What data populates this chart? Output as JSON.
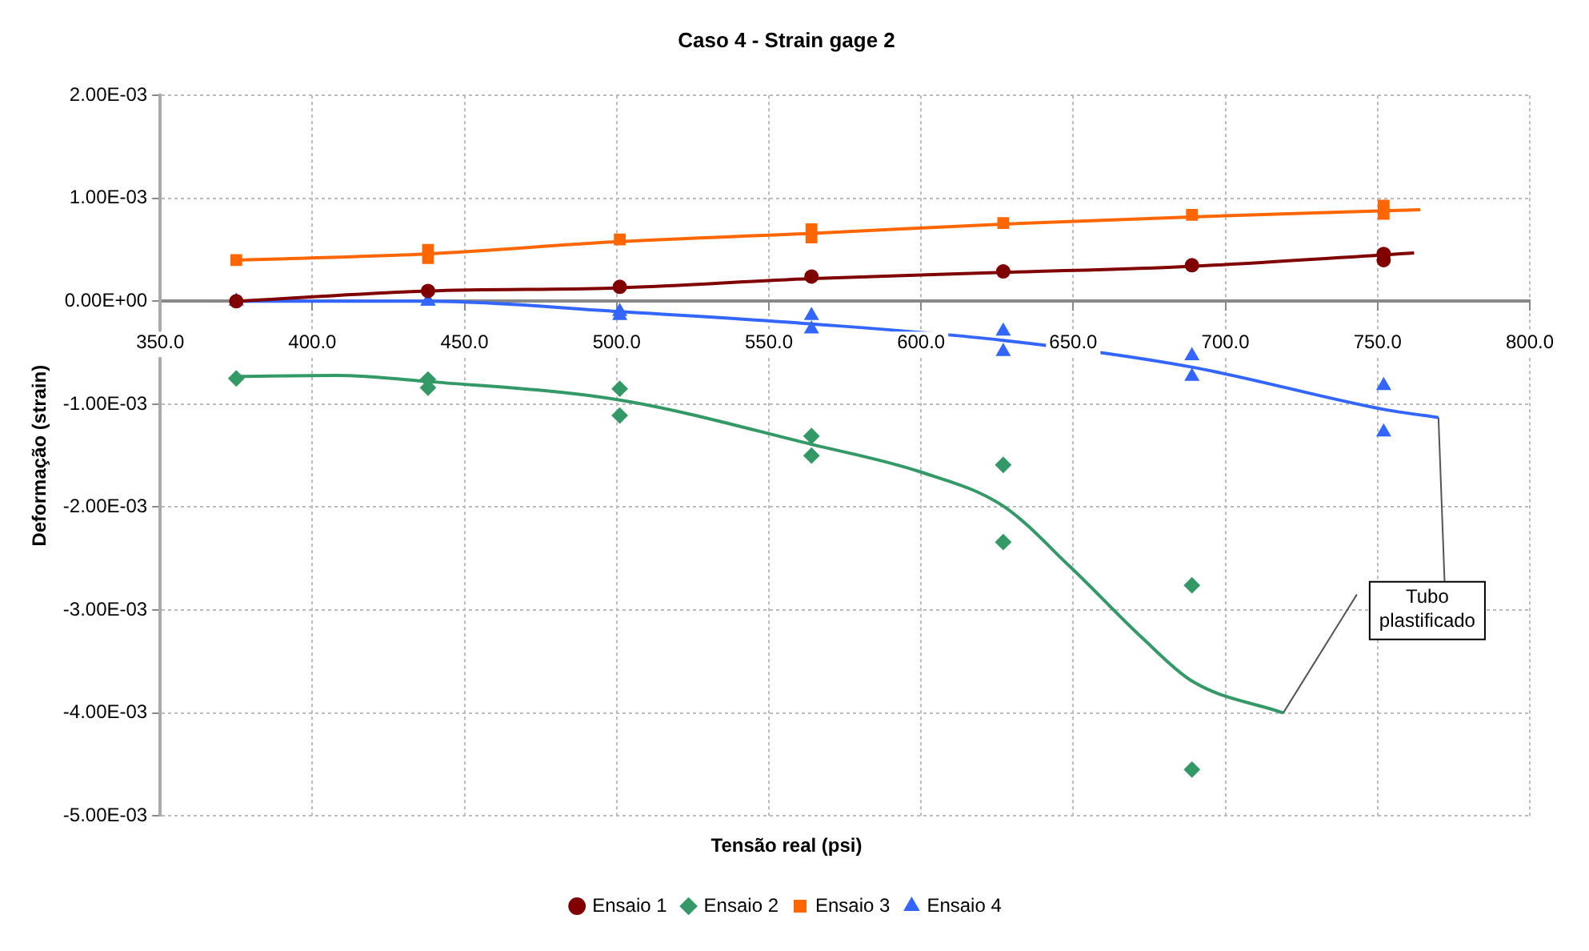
{
  "chart_data": {
    "type": "scatter",
    "title": "Caso 4 - Strain gage 2",
    "xlabel": "Tensão real (psi)",
    "ylabel": "Deformação (strain)",
    "xlim": [
      350,
      800
    ],
    "xticks": [
      {
        "value": 350,
        "label": "350.0"
      },
      {
        "value": 400,
        "label": "400.0"
      },
      {
        "value": 450,
        "label": "450.0"
      },
      {
        "value": 500,
        "label": "500.0"
      },
      {
        "value": 550,
        "label": "550.0"
      },
      {
        "value": 600,
        "label": "600.0"
      },
      {
        "value": 650,
        "label": "650.0"
      },
      {
        "value": 700,
        "label": "700.0"
      },
      {
        "value": 750,
        "label": "750.0"
      },
      {
        "value": 800,
        "label": "800.0"
      }
    ],
    "ylim": [
      -0.005,
      0.002
    ],
    "yticks": [
      {
        "value": -0.005,
        "label": "-5.00E-03"
      },
      {
        "value": -0.004,
        "label": "-4.00E-03"
      },
      {
        "value": -0.003,
        "label": "-3.00E-03"
      },
      {
        "value": -0.002,
        "label": "-2.00E-03"
      },
      {
        "value": -0.001,
        "label": "-1.00E-03"
      },
      {
        "value": 0,
        "label": "0.00E+00"
      },
      {
        "value": 0.001,
        "label": "1.00E-03"
      },
      {
        "value": 0.002,
        "label": "2.00E-03"
      }
    ],
    "grid": true,
    "legend": "bottom",
    "annotations": [
      {
        "text": "Tubo plastificado",
        "x": 719,
        "y": -0.004
      }
    ],
    "series": [
      {
        "name": "Ensaio 1",
        "type": "scatter",
        "marker": "circle",
        "color": "#800000",
        "x": [
          375,
          438,
          501,
          564,
          627,
          689,
          752,
          752
        ],
        "values": [
          0.0,
          0.0001,
          0.00014,
          0.00024,
          0.00029,
          0.00035,
          0.0004,
          0.00046
        ]
      },
      {
        "name": "Ensaio 2",
        "type": "scatter",
        "marker": "diamond",
        "color": "#339966",
        "x": [
          375,
          438,
          438,
          501,
          501,
          564,
          564,
          627,
          627,
          689,
          689
        ],
        "values": [
          -0.00075,
          -0.00076,
          -0.00084,
          -0.00085,
          -0.00111,
          -0.00131,
          -0.0015,
          -0.00159,
          -0.00234,
          -0.00276,
          -0.00455
        ]
      },
      {
        "name": "Ensaio 3",
        "type": "scatter",
        "marker": "square",
        "color": "#ff6600",
        "x": [
          375,
          438,
          438,
          501,
          564,
          564,
          627,
          689,
          752,
          752
        ],
        "values": [
          0.0004,
          0.00042,
          0.0005,
          0.0006,
          0.00062,
          0.0007,
          0.00076,
          0.00084,
          0.00085,
          0.00093
        ]
      },
      {
        "name": "Ensaio 4",
        "type": "scatter",
        "marker": "triangle",
        "color": "#3366ff",
        "x": [
          375,
          438,
          438,
          501,
          501,
          564,
          564,
          627,
          627,
          689,
          689,
          752,
          752
        ],
        "values": [
          0.0,
          0.0,
          0.0,
          -0.0001,
          -0.00014,
          -0.00014,
          -0.00027,
          -0.00029,
          -0.00049,
          -0.00053,
          -0.00073,
          -0.00082,
          -0.00127
        ]
      },
      {
        "type": "line",
        "marker": "none",
        "color": "#800000",
        "x": [
          375,
          438,
          501,
          564,
          627,
          689,
          762
        ],
        "values": [
          0.0,
          0.0001,
          0.00013,
          0.00022,
          0.00028,
          0.00034,
          0.00047
        ]
      },
      {
        "type": "line",
        "marker": "none",
        "color": "#339966",
        "x": [
          375,
          408,
          438,
          501,
          564,
          600,
          627,
          649,
          673,
          689,
          719
        ],
        "values": [
          -0.00073,
          -0.00072,
          -0.00078,
          -0.00096,
          -0.00139,
          -0.00166,
          -0.00199,
          -0.00258,
          -0.00328,
          -0.00369,
          -0.004
        ]
      },
      {
        "type": "line",
        "marker": "none",
        "color": "#ff6600",
        "x": [
          375,
          438,
          501,
          564,
          627,
          689,
          764
        ],
        "values": [
          0.0004,
          0.00046,
          0.00058,
          0.00066,
          0.00075,
          0.00082,
          0.00089
        ]
      },
      {
        "type": "line",
        "marker": "none",
        "color": "#3366ff",
        "x": [
          375,
          438,
          501,
          564,
          627,
          689,
          752,
          770
        ],
        "values": [
          0.0,
          0.0,
          -0.0001,
          -0.00022,
          -0.00038,
          -0.00064,
          -0.00105,
          -0.00113
        ]
      }
    ]
  }
}
